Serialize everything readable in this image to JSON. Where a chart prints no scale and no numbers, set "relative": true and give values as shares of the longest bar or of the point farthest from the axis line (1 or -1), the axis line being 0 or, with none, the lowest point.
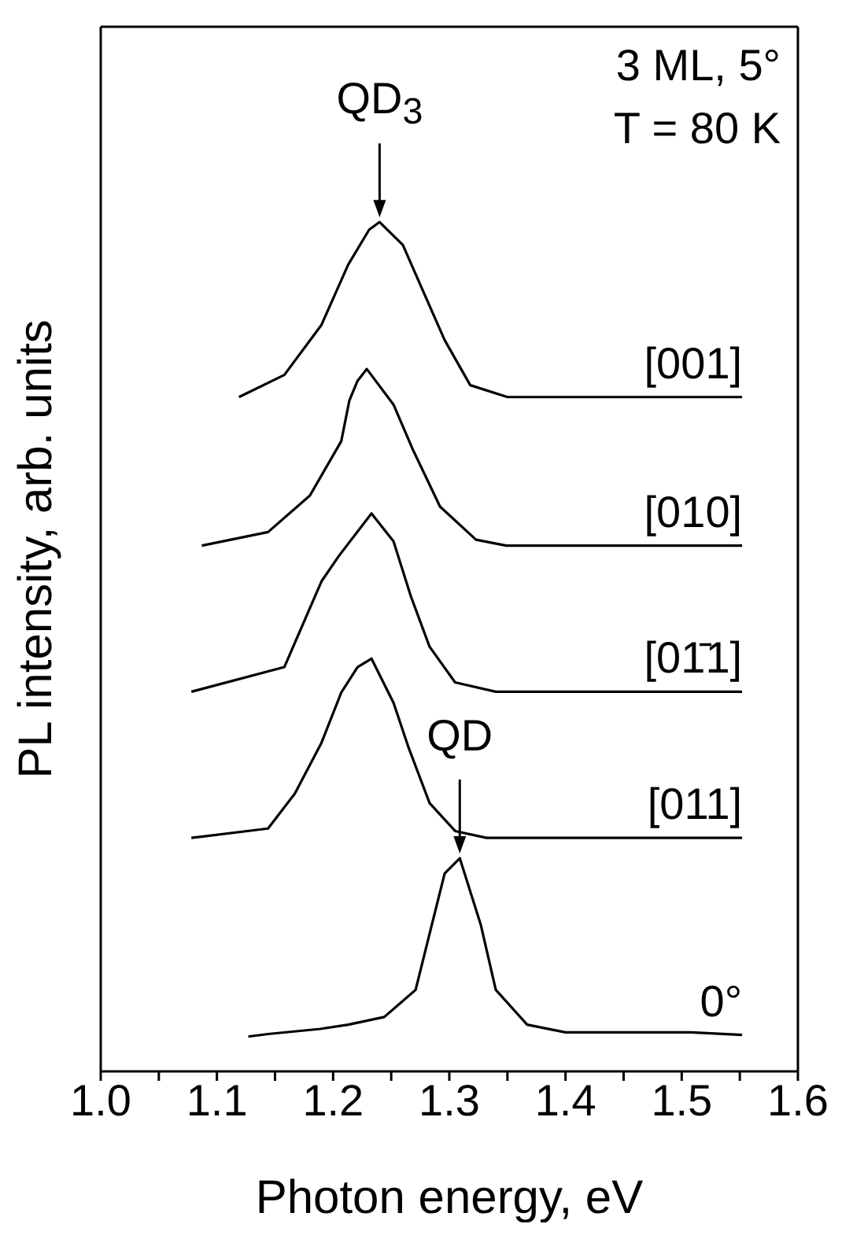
{
  "chart_data": {
    "type": "line",
    "relative": true,
    "xlabel": "Photon energy, eV",
    "ylabel": "PL intensity, arb. units",
    "xlim": [
      1.0,
      1.6
    ],
    "xticks": [
      {
        "value": 1.0,
        "label": "1.0"
      },
      {
        "value": 1.05,
        "label": null
      },
      1.1,
      {
        "value": 1.15,
        "label": null
      },
      1.2,
      {
        "value": 1.25,
        "label": null
      },
      1.3,
      {
        "value": 1.35,
        "label": null
      },
      1.4,
      {
        "value": 1.45,
        "label": null
      },
      1.5,
      {
        "value": 1.55,
        "label": null
      },
      1.6
    ],
    "marker": "none",
    "line_style": "solid",
    "tick_labels": "x",
    "annotations": [
      {
        "text": "QD$_{3}$",
        "x": 1.24,
        "y": 1.0
      },
      {
        "text": "QD",
        "x": 1.309,
        "y": 0.251
      },
      "3 ML, 5°",
      "T = 80 K"
    ],
    "series": [
      {
        "name": "[001]",
        "color": "#000000",
        "x": [
          1.119,
          1.158,
          1.19,
          1.213,
          1.231,
          1.24,
          1.26,
          1.277,
          1.296,
          1.318,
          1.35,
          1.552
        ],
        "values": [
          0.794,
          0.82,
          0.879,
          0.95,
          0.991,
          1.0,
          0.973,
          0.92,
          0.861,
          0.808,
          0.794,
          0.794
        ]
      },
      {
        "name": "[010]",
        "color": "#000000",
        "x": [
          1.087,
          1.144,
          1.18,
          1.207,
          1.214,
          1.221,
          1.229,
          1.252,
          1.269,
          1.292,
          1.323,
          1.349,
          1.552
        ],
        "values": [
          0.619,
          0.635,
          0.678,
          0.742,
          0.79,
          0.813,
          0.827,
          0.785,
          0.731,
          0.665,
          0.626,
          0.619,
          0.619
        ]
      },
      {
        "name": "[01̄1]",
        "color": "#000000",
        "x": [
          1.078,
          1.158,
          1.19,
          1.205,
          1.233,
          1.252,
          1.267,
          1.283,
          1.305,
          1.34,
          1.552
        ],
        "values": [
          0.447,
          0.476,
          0.577,
          0.607,
          0.657,
          0.624,
          0.559,
          0.5,
          0.458,
          0.447,
          0.447
        ]
      },
      {
        "name": "[011]",
        "color": "#000000",
        "x": [
          1.078,
          1.144,
          1.167,
          1.19,
          1.207,
          1.221,
          1.233,
          1.252,
          1.265,
          1.283,
          1.305,
          1.332,
          1.552
        ],
        "values": [
          0.275,
          0.286,
          0.327,
          0.387,
          0.446,
          0.476,
          0.486,
          0.434,
          0.381,
          0.316,
          0.283,
          0.275,
          0.275
        ]
      },
      {
        "name": "0°",
        "color": "#000000",
        "x": [
          1.127,
          1.144,
          1.189,
          1.213,
          1.244,
          1.271,
          1.283,
          1.296,
          1.309,
          1.327,
          1.34,
          1.367,
          1.4,
          1.508,
          1.552
        ],
        "values": [
          0.041,
          0.044,
          0.05,
          0.055,
          0.064,
          0.096,
          0.162,
          0.233,
          0.251,
          0.173,
          0.096,
          0.055,
          0.046,
          0.046,
          0.043
        ]
      }
    ]
  }
}
